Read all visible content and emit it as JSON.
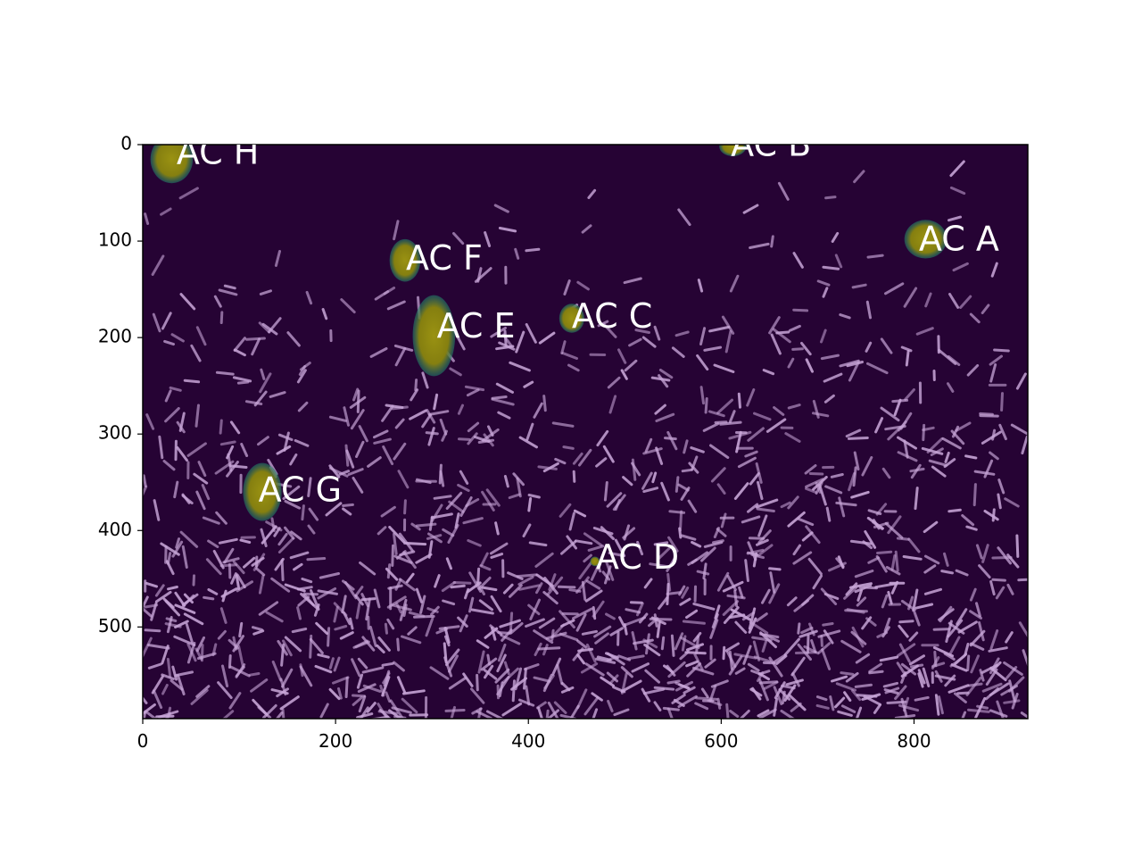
{
  "chart_data": {
    "type": "heatmap",
    "title": "",
    "xlabel": "",
    "ylabel": "",
    "xlim": [
      0,
      918
    ],
    "ylim": [
      595,
      0
    ],
    "x_ticks": [
      "0",
      "200",
      "400",
      "600",
      "800"
    ],
    "y_ticks": [
      "0",
      "100",
      "200",
      "300",
      "400",
      "500"
    ],
    "x_tick_values": [
      0,
      200,
      400,
      600,
      800
    ],
    "y_tick_values": [
      0,
      100,
      200,
      300,
      400,
      500
    ],
    "colors": {
      "background": "#260334",
      "cluster_fill": "#8f8a10",
      "cluster_edge": "#1f7a6a",
      "rod": "#c8a6d8",
      "annotation_text": "#ffffff"
    },
    "clusters": [
      {
        "label": "AC A",
        "x": 805,
        "y": 100
      },
      {
        "label": "AC B",
        "x": 610,
        "y": 2
      },
      {
        "label": "AC C",
        "x": 445,
        "y": 180
      },
      {
        "label": "AC D",
        "x": 470,
        "y": 430
      },
      {
        "label": "AC E",
        "x": 305,
        "y": 190
      },
      {
        "label": "AC F",
        "x": 273,
        "y": 120
      },
      {
        "label": "AC G",
        "x": 120,
        "y": 360
      },
      {
        "label": "AC H",
        "x": 35,
        "y": 10
      }
    ]
  }
}
